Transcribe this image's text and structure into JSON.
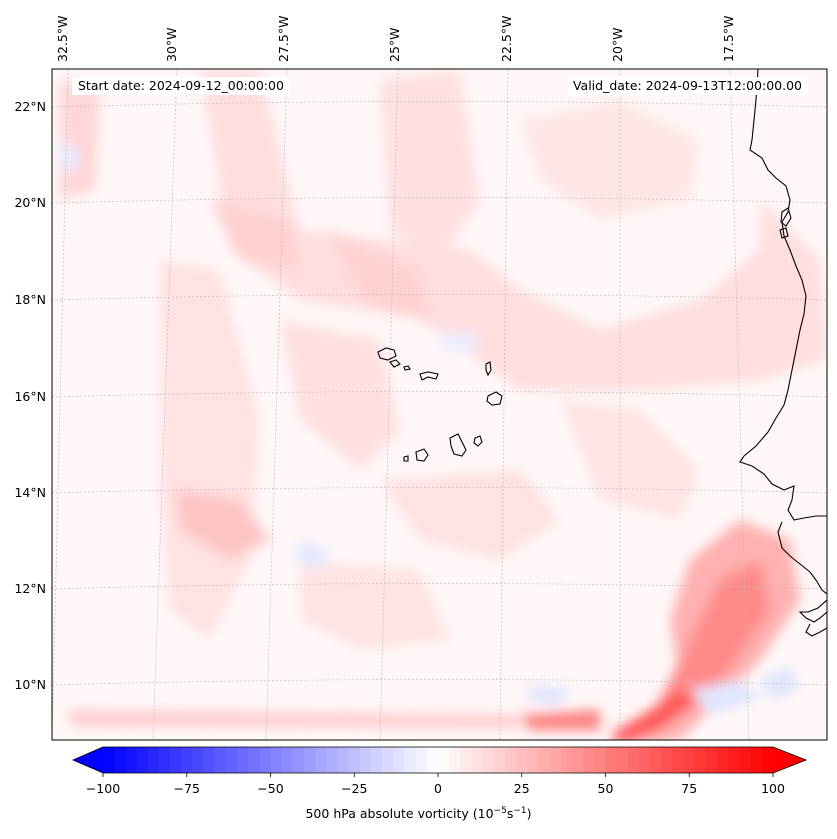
{
  "map": {
    "start_date_text": "Start date: 2024-09-12_00:00:00",
    "valid_date_text": "Valid_date: 2024-09-13T12:00:00.00",
    "longitude_labels": [
      "32.5°W",
      "30°W",
      "27.5°W",
      "25°W",
      "22.5°W",
      "20°W",
      "17.5°W"
    ],
    "latitude_labels": [
      "22°N",
      "20°N",
      "18°N",
      "16°N",
      "14°N",
      "12°N",
      "10°N"
    ],
    "field": "500 hPa absolute vorticity",
    "colors": {
      "positive_strong": "#ff0000",
      "negative_strong": "#0000ff",
      "neutral": "#ffffff",
      "coastline": "#000000",
      "gridline": "#bbbbbb"
    }
  },
  "colorbar": {
    "tick_labels": [
      "−100",
      "−75",
      "−50",
      "−25",
      "0",
      "25",
      "50",
      "75",
      "100"
    ],
    "label_main": "500 hPa absolute vorticity (10",
    "label_exp1": "−5",
    "label_mid": "s",
    "label_exp2": "−1",
    "label_end": ")",
    "min": -100,
    "max": 100,
    "levels": 61,
    "colormap": "bwr"
  }
}
